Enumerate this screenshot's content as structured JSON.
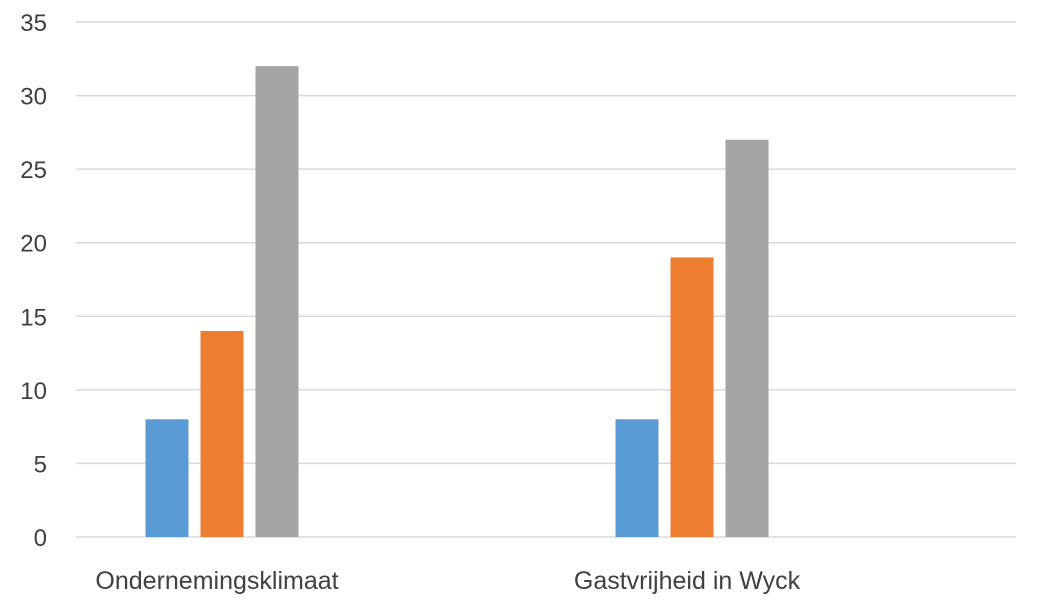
{
  "chart_data": {
    "type": "bar",
    "title": "",
    "xlabel": "",
    "ylabel": "",
    "categories": [
      "Ondernemingsklimaat",
      "Gastvrijheid in Wyck"
    ],
    "series": [
      {
        "color": "#5B9BD5",
        "values": [
          8,
          8
        ]
      },
      {
        "color": "#ED7D31",
        "values": [
          14,
          19
        ]
      },
      {
        "color": "#A5A5A5",
        "values": [
          32,
          27
        ]
      }
    ],
    "ylim": [
      0,
      35
    ],
    "yticks": [
      "0",
      "5",
      "10",
      "15",
      "20",
      "25",
      "30",
      "35"
    ],
    "grid": true,
    "legend": false,
    "colors": {
      "gridline": "#D9D9D9",
      "axis_text": "#404040"
    }
  }
}
